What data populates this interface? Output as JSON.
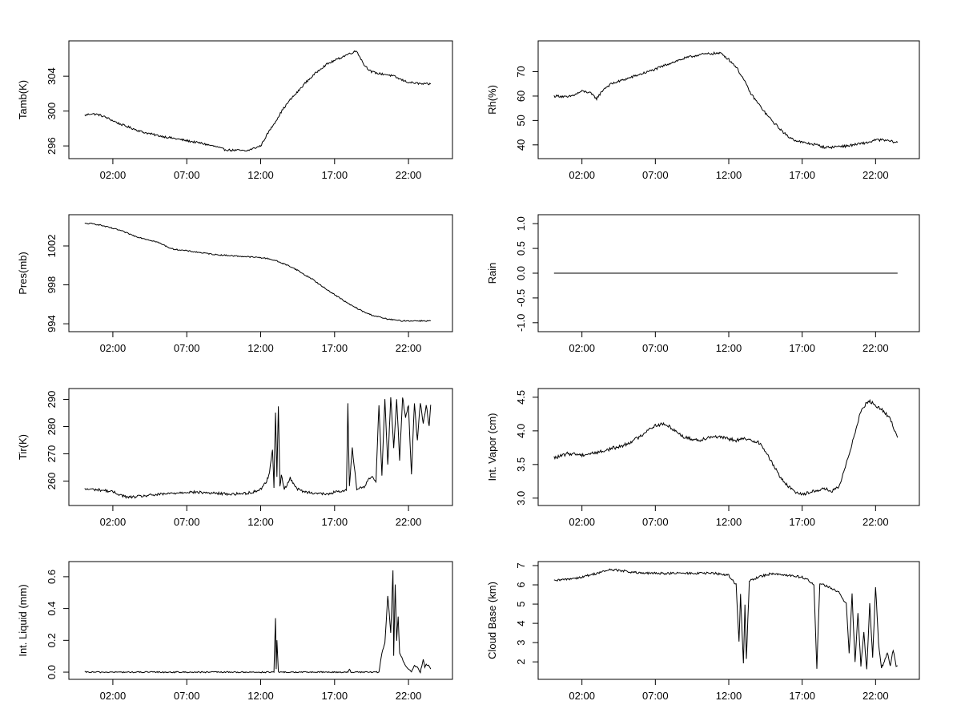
{
  "chart_data": [
    {
      "type": "line",
      "ylabel": "Tamb(K)",
      "xlabel": "",
      "xlim": [
        0,
        24
      ],
      "ylim": [
        295,
        307.6
      ],
      "yticks": [
        296,
        300,
        304
      ],
      "xticks": [
        "02:00",
        "07:00",
        "12:00",
        "17:00",
        "22:00"
      ],
      "x_hours": [
        0.1,
        0.5,
        1.0,
        1.5,
        2.0,
        2.5,
        3.0,
        3.5,
        4.0,
        5.0,
        6.0,
        7.0,
        8.0,
        9.0,
        9.5,
        10.0,
        10.5,
        11.0,
        11.5,
        12.0,
        12.5,
        13.0,
        13.5,
        14.0,
        14.5,
        15.0,
        15.5,
        16.0,
        16.5,
        17.0,
        17.5,
        18.0,
        18.5,
        19.0,
        19.5,
        20.0,
        20.5,
        21.0,
        21.5,
        22.0,
        22.5,
        23.0,
        23.5
      ],
      "values": [
        299.5,
        299.7,
        299.6,
        299.3,
        298.9,
        298.5,
        298.2,
        297.9,
        297.6,
        297.2,
        296.9,
        296.6,
        296.3,
        295.9,
        295.6,
        295.5,
        295.5,
        295.4,
        295.7,
        296.0,
        297.5,
        298.8,
        300.2,
        301.3,
        302.2,
        303.2,
        304.0,
        304.8,
        305.4,
        305.8,
        306.2,
        306.6,
        306.9,
        305.3,
        304.5,
        304.3,
        304.2,
        304.0,
        303.6,
        303.3,
        303.2,
        303.1,
        303.1
      ],
      "noise": 0.12
    },
    {
      "type": "line",
      "ylabel": "Rh(%)",
      "xlabel": "",
      "xlim": [
        0,
        24
      ],
      "ylim": [
        36,
        81
      ],
      "yticks": [
        40,
        50,
        60,
        70
      ],
      "xticks": [
        "02:00",
        "07:00",
        "12:00",
        "17:00",
        "22:00"
      ],
      "x_hours": [
        0.1,
        0.5,
        1.0,
        1.5,
        2.0,
        2.5,
        3.0,
        3.5,
        4.0,
        5.0,
        6.0,
        7.0,
        8.0,
        9.0,
        10.0,
        11.0,
        11.5,
        12.0,
        12.5,
        13.0,
        13.5,
        14.0,
        14.5,
        15.0,
        15.5,
        16.0,
        16.5,
        17.0,
        17.5,
        18.0,
        18.5,
        19.0,
        19.5,
        20.0,
        20.5,
        21.0,
        21.5,
        22.0,
        22.5,
        23.0,
        23.5
      ],
      "values": [
        60,
        60,
        59.5,
        60.5,
        62,
        61.5,
        59,
        63,
        65,
        67,
        69,
        71,
        73.5,
        75.5,
        77,
        77.5,
        77.5,
        75,
        72,
        67,
        61,
        57,
        53,
        49.5,
        46.5,
        43.5,
        42,
        41,
        40.5,
        40,
        39,
        39,
        39.5,
        39.5,
        40,
        40.5,
        41,
        42,
        42,
        41.5,
        41
      ],
      "noise": 0.5
    },
    {
      "type": "line",
      "ylabel": "Pres(mb)",
      "xlabel": "",
      "xlim": [
        0,
        24
      ],
      "ylim": [
        993.6,
        1004.8
      ],
      "yticks": [
        994,
        998,
        1002
      ],
      "xticks": [
        "02:00",
        "07:00",
        "12:00",
        "17:00",
        "22:00"
      ],
      "x_hours": [
        0.1,
        0.5,
        1.0,
        1.5,
        2.0,
        2.5,
        3.0,
        3.5,
        4.0,
        5.0,
        6.0,
        6.5,
        7.0,
        8.0,
        9.0,
        10.0,
        11.0,
        12.0,
        12.5,
        13.0,
        13.5,
        14.0,
        14.5,
        15.0,
        15.5,
        16.0,
        16.5,
        17.0,
        17.5,
        18.0,
        18.5,
        19.0,
        19.5,
        20.0,
        20.5,
        21.0,
        21.5,
        22.0,
        22.5,
        23.0,
        23.5
      ],
      "values": [
        1004.3,
        1004.3,
        1004.2,
        1004.0,
        1003.8,
        1003.6,
        1003.3,
        1003.0,
        1002.8,
        1002.4,
        1001.7,
        1001.6,
        1001.5,
        1001.3,
        1001.1,
        1001.0,
        1000.9,
        1000.8,
        1000.7,
        1000.5,
        1000.2,
        999.9,
        999.5,
        999.0,
        998.6,
        998.0,
        997.5,
        997.0,
        996.5,
        996.0,
        995.6,
        995.2,
        994.9,
        994.7,
        994.5,
        994.4,
        994.3,
        994.3,
        994.3,
        994.3,
        994.3
      ],
      "noise": 0.06
    },
    {
      "type": "line",
      "ylabel": "Rain",
      "xlabel": "",
      "xlim": [
        0,
        24
      ],
      "ylim": [
        -1.1,
        1.1
      ],
      "yticks": [
        -1.0,
        -0.5,
        0.0,
        0.5,
        1.0
      ],
      "xticks": [
        "02:00",
        "07:00",
        "12:00",
        "17:00",
        "22:00"
      ],
      "x_hours": [
        0.1,
        23.5
      ],
      "values": [
        0.0,
        0.0
      ],
      "noise": 0
    },
    {
      "type": "line",
      "ylabel": "Tir(K)",
      "xlabel": "",
      "xlim": [
        0,
        24
      ],
      "ylim": [
        252.5,
        292.5
      ],
      "yticks": [
        260,
        270,
        280,
        290
      ],
      "xticks": [
        "02:00",
        "07:00",
        "12:00",
        "17:00",
        "22:00"
      ],
      "x_hours": [
        0.1,
        0.5,
        1.0,
        1.5,
        2.0,
        2.5,
        3.0,
        3.5,
        4.0,
        5.0,
        6.0,
        7.0,
        8.0,
        9.0,
        10.0,
        11.0,
        11.5,
        12.0,
        12.4,
        12.6,
        12.8,
        12.9,
        13.0,
        13.1,
        13.2,
        13.3,
        13.4,
        13.6,
        14.0,
        14.5,
        15.0,
        16.0,
        16.5,
        17.0,
        17.5,
        17.8,
        17.9,
        18.0,
        18.2,
        18.5,
        19.0,
        19.5,
        19.8,
        20.0,
        20.2,
        20.4,
        20.6,
        20.8,
        21.0,
        21.2,
        21.4,
        21.6,
        21.8,
        22.0,
        22.2,
        22.4,
        22.6,
        22.8,
        23.0,
        23.2,
        23.4,
        23.5
      ],
      "values": [
        257,
        257,
        256.8,
        256.5,
        256,
        255,
        254,
        254.2,
        254.5,
        255,
        255.5,
        256,
        255.8,
        255.5,
        255.2,
        255.5,
        256,
        257,
        260,
        263,
        272,
        258,
        285,
        262,
        287,
        258,
        262,
        257,
        261,
        257,
        256,
        255.5,
        255,
        256,
        256,
        257,
        289,
        258,
        272,
        257,
        258,
        262,
        260,
        288,
        262,
        290,
        266,
        291,
        272,
        290,
        268,
        291,
        283,
        288,
        262,
        289,
        275,
        289,
        281,
        288,
        280,
        288
      ],
      "noise": 0.5
    },
    {
      "type": "line",
      "ylabel": "Int. Vapor (cm)",
      "xlabel": "",
      "xlim": [
        0,
        24
      ],
      "ylim": [
        2.95,
        4.57
      ],
      "yticks": [
        3.0,
        3.5,
        4.0,
        4.5
      ],
      "xticks": [
        "02:00",
        "07:00",
        "12:00",
        "17:00",
        "22:00"
      ],
      "x_hours": [
        0.1,
        0.5,
        1.0,
        1.5,
        2.0,
        2.5,
        3.0,
        3.5,
        4.0,
        4.5,
        5.0,
        5.5,
        6.0,
        6.5,
        7.0,
        7.5,
        8.0,
        8.5,
        9.0,
        9.5,
        10.0,
        10.5,
        11.0,
        11.5,
        12.0,
        12.5,
        13.0,
        13.5,
        14.0,
        14.5,
        15.0,
        15.5,
        16.0,
        16.5,
        17.0,
        17.5,
        18.0,
        18.5,
        19.0,
        19.5,
        20.0,
        20.5,
        21.0,
        21.5,
        22.0,
        22.5,
        23.0,
        23.5
      ],
      "values": [
        3.6,
        3.62,
        3.66,
        3.66,
        3.64,
        3.66,
        3.68,
        3.7,
        3.74,
        3.76,
        3.8,
        3.86,
        3.92,
        4.02,
        4.08,
        4.1,
        4.06,
        3.98,
        3.9,
        3.88,
        3.86,
        3.9,
        3.92,
        3.9,
        3.88,
        3.86,
        3.88,
        3.86,
        3.84,
        3.7,
        3.5,
        3.32,
        3.18,
        3.1,
        3.06,
        3.08,
        3.12,
        3.14,
        3.1,
        3.16,
        3.5,
        3.9,
        4.3,
        4.45,
        4.38,
        4.3,
        4.18,
        3.9
      ],
      "noise": 0.025
    },
    {
      "type": "line",
      "ylabel": "Int. Liquid (mm)",
      "xlabel": "",
      "xlim": [
        0,
        24
      ],
      "ylim": [
        -0.02,
        0.67
      ],
      "yticks": [
        0.0,
        0.2,
        0.4,
        0.6
      ],
      "xticks": [
        "02:00",
        "07:00",
        "12:00",
        "17:00",
        "22:00"
      ],
      "x_hours": [
        0.1,
        12.5,
        12.9,
        13.0,
        13.05,
        13.1,
        13.2,
        17.5,
        17.9,
        18.0,
        18.1,
        20.0,
        20.2,
        20.4,
        20.6,
        20.8,
        20.95,
        21.0,
        21.1,
        21.2,
        21.3,
        21.4,
        21.6,
        21.8,
        22.0,
        22.2,
        22.4,
        22.6,
        22.8,
        23.0,
        23.1,
        23.2,
        23.4,
        23.5
      ],
      "values": [
        0.0,
        0.0,
        0.0,
        0.34,
        0.02,
        0.2,
        0.0,
        0.0,
        0.0,
        0.02,
        0.0,
        0.0,
        0.12,
        0.18,
        0.48,
        0.25,
        0.64,
        0.1,
        0.55,
        0.2,
        0.35,
        0.12,
        0.08,
        0.04,
        0.02,
        0.0,
        0.04,
        0.03,
        0.0,
        0.08,
        0.03,
        0.05,
        0.04,
        0.02
      ],
      "noise": 0.004
    },
    {
      "type": "line",
      "ylabel": "Cloud Base (km)",
      "xlabel": "",
      "xlim": [
        0,
        24
      ],
      "ylim": [
        1.3,
        7.0
      ],
      "yticks": [
        2,
        3,
        4,
        5,
        6,
        7
      ],
      "xticks": [
        "02:00",
        "07:00",
        "12:00",
        "17:00",
        "22:00"
      ],
      "x_hours": [
        0.1,
        1.0,
        2.0,
        3.0,
        4.0,
        5.0,
        6.0,
        7.0,
        8.0,
        9.0,
        10.0,
        11.0,
        12.0,
        12.5,
        12.7,
        12.8,
        13.0,
        13.1,
        13.2,
        13.4,
        14.0,
        15.0,
        16.0,
        17.0,
        17.5,
        17.8,
        18.0,
        18.2,
        18.5,
        19.0,
        19.5,
        20.0,
        20.2,
        20.4,
        20.6,
        20.8,
        21.0,
        21.2,
        21.4,
        21.6,
        21.8,
        22.0,
        22.2,
        22.4,
        22.6,
        22.8,
        23.0,
        23.2,
        23.4,
        23.5
      ],
      "values": [
        6.2,
        6.3,
        6.4,
        6.6,
        6.8,
        6.7,
        6.6,
        6.6,
        6.6,
        6.6,
        6.6,
        6.6,
        6.5,
        6.0,
        3.0,
        5.5,
        1.9,
        5.0,
        2.1,
        6.2,
        6.4,
        6.6,
        6.5,
        6.4,
        6.2,
        6.0,
        1.6,
        6.1,
        6.0,
        5.8,
        5.6,
        5.0,
        2.5,
        5.5,
        2.0,
        4.5,
        1.8,
        3.5,
        1.6,
        5.0,
        2.2,
        5.9,
        3.0,
        1.7,
        2.0,
        2.5,
        1.8,
        2.6,
        1.8,
        1.8
      ],
      "noise": 0.06
    }
  ]
}
